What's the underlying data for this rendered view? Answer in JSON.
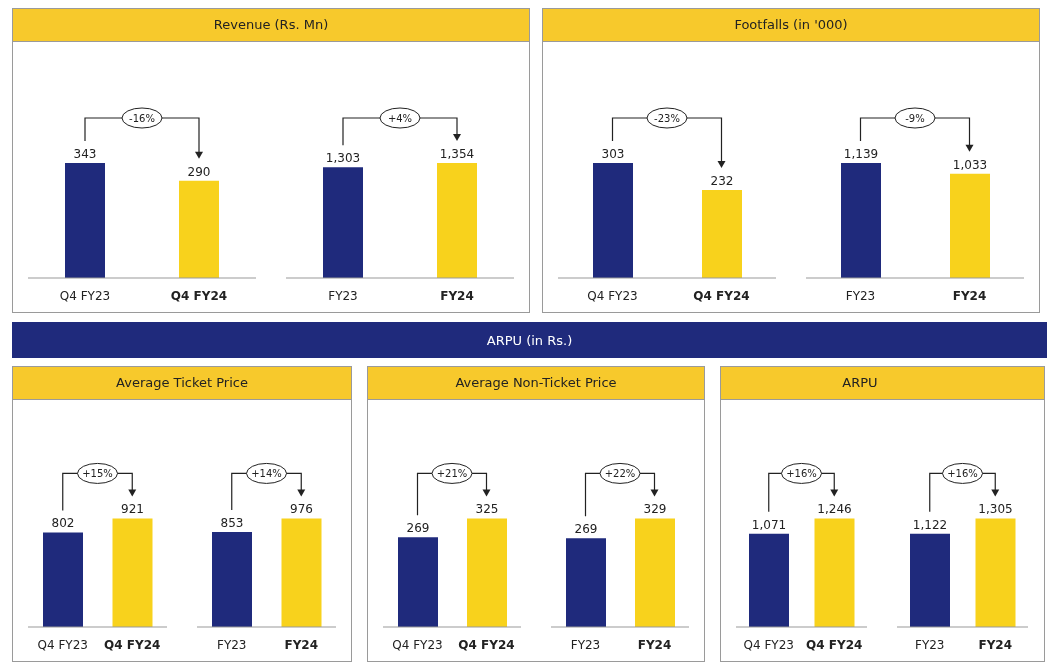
{
  "chart_data": [
    {
      "type": "bar",
      "title": "Revenue (Rs. Mn)",
      "categories": [
        "Q4 FY23",
        "Q4 FY24"
      ],
      "values": [
        343,
        290
      ],
      "colors": [
        "#1f2a7c",
        "#f8d21c"
      ],
      "value_labels": [
        "343",
        "290"
      ],
      "annotations": [
        "-16%"
      ]
    },
    {
      "type": "bar",
      "categories": [
        "FY23",
        "FY24"
      ],
      "values": [
        1303,
        1354
      ],
      "colors": [
        "#1f2a7c",
        "#f8d21c"
      ],
      "value_labels": [
        "1,303",
        "1,354"
      ],
      "annotations": [
        "+4%"
      ]
    },
    {
      "type": "bar",
      "title": "Footfalls (in '000)",
      "categories": [
        "Q4 FY23",
        "Q4 FY24"
      ],
      "values": [
        303,
        232
      ],
      "colors": [
        "#1f2a7c",
        "#f8d21c"
      ],
      "value_labels": [
        "303",
        "232"
      ],
      "annotations": [
        "-23%"
      ]
    },
    {
      "type": "bar",
      "categories": [
        "FY23",
        "FY24"
      ],
      "values": [
        1139,
        1033
      ],
      "colors": [
        "#1f2a7c",
        "#f8d21c"
      ],
      "value_labels": [
        "1,139",
        "1,033"
      ],
      "annotations": [
        "-9%"
      ]
    },
    {
      "type": "other",
      "title": "ARPU (in Rs.)"
    },
    {
      "type": "bar",
      "title": "Average Ticket Price",
      "categories": [
        "Q4 FY23",
        "Q4 FY24"
      ],
      "values": [
        802,
        921
      ],
      "colors": [
        "#1f2a7c",
        "#f8d21c"
      ],
      "value_labels": [
        "802",
        "921"
      ],
      "annotations": [
        "+15%"
      ]
    },
    {
      "type": "bar",
      "categories": [
        "FY23",
        "FY24"
      ],
      "values": [
        853,
        976
      ],
      "colors": [
        "#1f2a7c",
        "#f8d21c"
      ],
      "value_labels": [
        "853",
        "976"
      ],
      "annotations": [
        "+14%"
      ]
    },
    {
      "type": "bar",
      "title": "Average Non-Ticket Price",
      "categories": [
        "Q4 FY23",
        "Q4 FY24"
      ],
      "values": [
        269,
        325
      ],
      "colors": [
        "#1f2a7c",
        "#f8d21c"
      ],
      "value_labels": [
        "269",
        "325"
      ],
      "annotations": [
        "+21%"
      ]
    },
    {
      "type": "bar",
      "categories": [
        "FY23",
        "FY24"
      ],
      "values": [
        269,
        329
      ],
      "colors": [
        "#1f2a7c",
        "#f8d21c"
      ],
      "value_labels": [
        "269",
        "329"
      ],
      "annotations": [
        "+22%"
      ]
    },
    {
      "type": "bar",
      "title": "ARPU",
      "categories": [
        "Q4 FY23",
        "Q4 FY24"
      ],
      "values": [
        1071,
        1246
      ],
      "colors": [
        "#1f2a7c",
        "#f8d21c"
      ],
      "value_labels": [
        "1,071",
        "1,246"
      ],
      "annotations": [
        "+16%"
      ]
    },
    {
      "type": "bar",
      "categories": [
        "FY23",
        "FY24"
      ],
      "values": [
        1122,
        1305
      ],
      "colors": [
        "#1f2a7c",
        "#f8d21c"
      ],
      "value_labels": [
        "1,122",
        "1,305"
      ],
      "annotations": [
        "+16%"
      ]
    }
  ]
}
